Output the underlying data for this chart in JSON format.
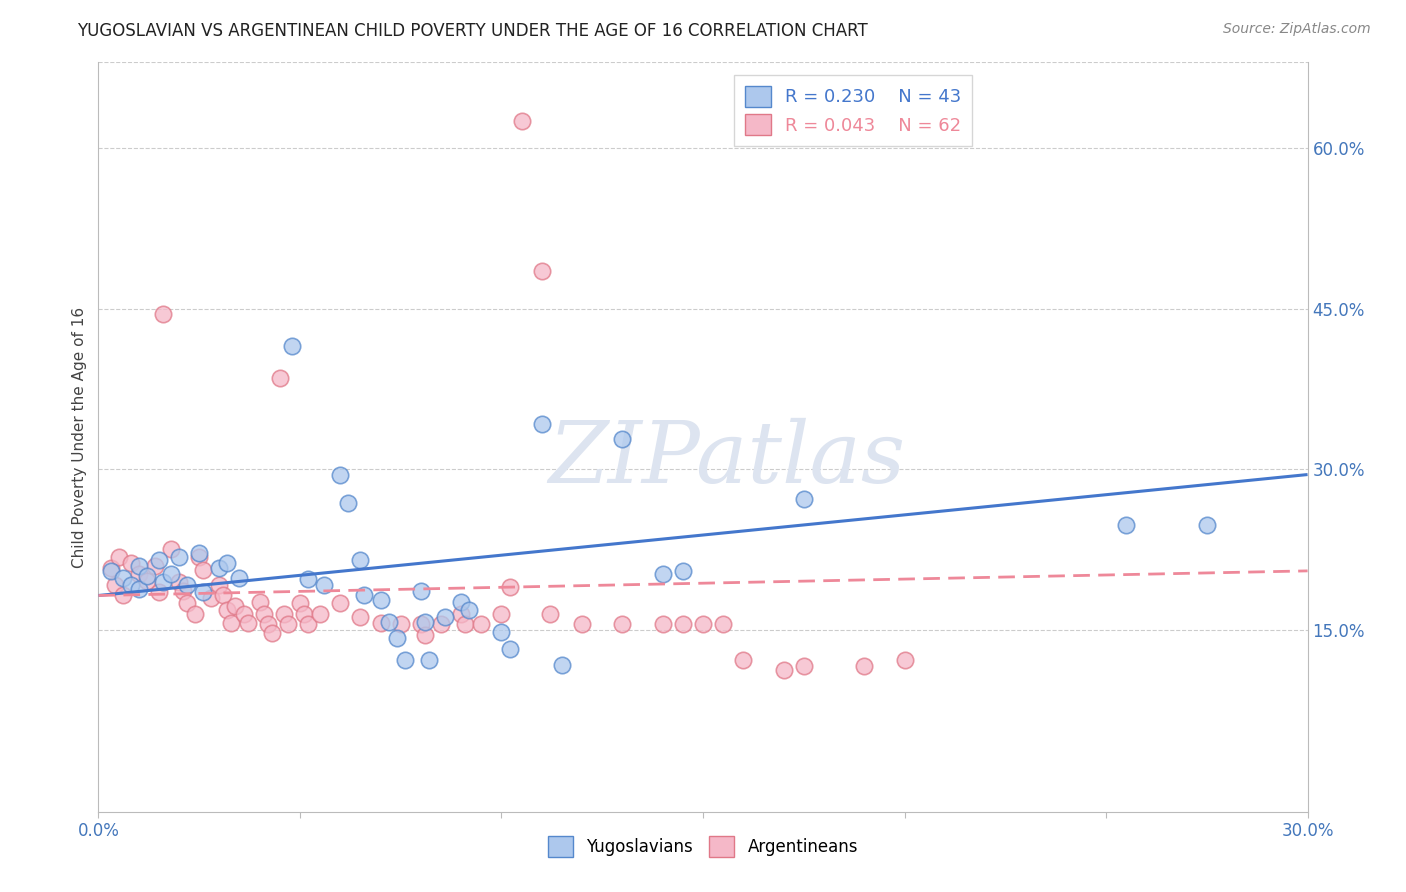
{
  "title": "YUGOSLAVIAN VS ARGENTINEAN CHILD POVERTY UNDER THE AGE OF 16 CORRELATION CHART",
  "source": "Source: ZipAtlas.com",
  "ylabel": "Child Poverty Under the Age of 16",
  "xlim": [
    0.0,
    0.3
  ],
  "ylim": [
    -0.02,
    0.68
  ],
  "yticks": [
    0.15,
    0.3,
    0.45,
    0.6
  ],
  "ytick_labels": [
    "15.0%",
    "30.0%",
    "45.0%",
    "60.0%"
  ],
  "yug_color": "#adc8ed",
  "yug_edge_color": "#5588cc",
  "arg_color": "#f5b8c8",
  "arg_edge_color": "#e07888",
  "yug_line_color": "#4477cc",
  "arg_line_color": "#ee8899",
  "watermark": "ZIPatlas",
  "yug_R": 0.23,
  "yug_N": 43,
  "arg_R": 0.043,
  "arg_N": 62,
  "yug_scatter": [
    [
      0.003,
      0.205
    ],
    [
      0.006,
      0.198
    ],
    [
      0.008,
      0.192
    ],
    [
      0.01,
      0.21
    ],
    [
      0.01,
      0.188
    ],
    [
      0.012,
      0.2
    ],
    [
      0.015,
      0.215
    ],
    [
      0.016,
      0.195
    ],
    [
      0.018,
      0.202
    ],
    [
      0.02,
      0.218
    ],
    [
      0.022,
      0.192
    ],
    [
      0.025,
      0.222
    ],
    [
      0.026,
      0.185
    ],
    [
      0.03,
      0.208
    ],
    [
      0.032,
      0.212
    ],
    [
      0.035,
      0.198
    ],
    [
      0.048,
      0.415
    ],
    [
      0.052,
      0.197
    ],
    [
      0.056,
      0.192
    ],
    [
      0.06,
      0.295
    ],
    [
      0.062,
      0.268
    ],
    [
      0.065,
      0.215
    ],
    [
      0.066,
      0.182
    ],
    [
      0.07,
      0.178
    ],
    [
      0.072,
      0.157
    ],
    [
      0.074,
      0.142
    ],
    [
      0.076,
      0.122
    ],
    [
      0.08,
      0.186
    ],
    [
      0.081,
      0.157
    ],
    [
      0.082,
      0.122
    ],
    [
      0.086,
      0.162
    ],
    [
      0.09,
      0.176
    ],
    [
      0.092,
      0.168
    ],
    [
      0.1,
      0.148
    ],
    [
      0.102,
      0.132
    ],
    [
      0.11,
      0.342
    ],
    [
      0.115,
      0.117
    ],
    [
      0.13,
      0.328
    ],
    [
      0.14,
      0.202
    ],
    [
      0.145,
      0.205
    ],
    [
      0.175,
      0.272
    ],
    [
      0.255,
      0.248
    ],
    [
      0.275,
      0.248
    ]
  ],
  "arg_scatter": [
    [
      0.003,
      0.208
    ],
    [
      0.004,
      0.192
    ],
    [
      0.005,
      0.218
    ],
    [
      0.006,
      0.182
    ],
    [
      0.008,
      0.212
    ],
    [
      0.01,
      0.202
    ],
    [
      0.012,
      0.196
    ],
    [
      0.014,
      0.21
    ],
    [
      0.015,
      0.185
    ],
    [
      0.016,
      0.445
    ],
    [
      0.018,
      0.225
    ],
    [
      0.02,
      0.195
    ],
    [
      0.021,
      0.186
    ],
    [
      0.022,
      0.175
    ],
    [
      0.024,
      0.165
    ],
    [
      0.025,
      0.218
    ],
    [
      0.026,
      0.206
    ],
    [
      0.028,
      0.18
    ],
    [
      0.03,
      0.192
    ],
    [
      0.031,
      0.182
    ],
    [
      0.032,
      0.168
    ],
    [
      0.033,
      0.156
    ],
    [
      0.034,
      0.172
    ],
    [
      0.036,
      0.165
    ],
    [
      0.037,
      0.156
    ],
    [
      0.04,
      0.176
    ],
    [
      0.041,
      0.165
    ],
    [
      0.042,
      0.155
    ],
    [
      0.043,
      0.147
    ],
    [
      0.045,
      0.385
    ],
    [
      0.046,
      0.165
    ],
    [
      0.047,
      0.155
    ],
    [
      0.05,
      0.175
    ],
    [
      0.051,
      0.165
    ],
    [
      0.052,
      0.155
    ],
    [
      0.055,
      0.165
    ],
    [
      0.06,
      0.175
    ],
    [
      0.065,
      0.162
    ],
    [
      0.07,
      0.156
    ],
    [
      0.075,
      0.155
    ],
    [
      0.08,
      0.155
    ],
    [
      0.081,
      0.145
    ],
    [
      0.085,
      0.155
    ],
    [
      0.09,
      0.165
    ],
    [
      0.091,
      0.155
    ],
    [
      0.095,
      0.155
    ],
    [
      0.1,
      0.165
    ],
    [
      0.102,
      0.19
    ],
    [
      0.105,
      0.625
    ],
    [
      0.11,
      0.485
    ],
    [
      0.112,
      0.165
    ],
    [
      0.12,
      0.155
    ],
    [
      0.13,
      0.155
    ],
    [
      0.14,
      0.155
    ],
    [
      0.145,
      0.155
    ],
    [
      0.15,
      0.155
    ],
    [
      0.155,
      0.155
    ],
    [
      0.16,
      0.122
    ],
    [
      0.17,
      0.112
    ],
    [
      0.175,
      0.116
    ],
    [
      0.19,
      0.116
    ],
    [
      0.2,
      0.122
    ]
  ],
  "yug_trendline": [
    [
      0.0,
      0.182
    ],
    [
      0.3,
      0.295
    ]
  ],
  "arg_trendline": [
    [
      0.0,
      0.182
    ],
    [
      0.3,
      0.205
    ]
  ]
}
